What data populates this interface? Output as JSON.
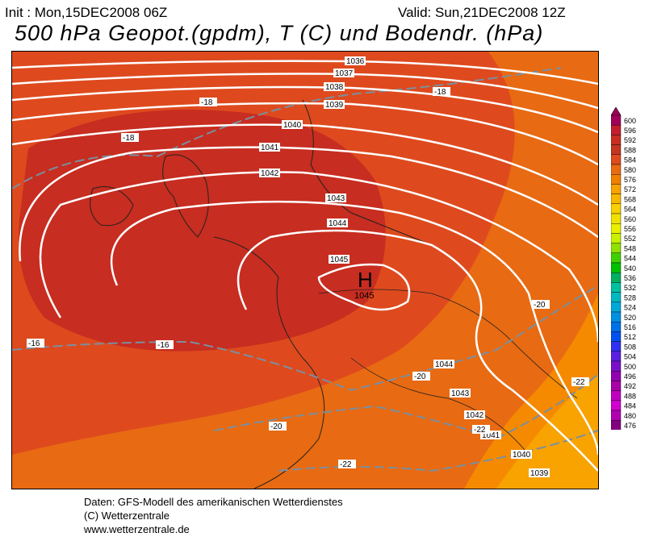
{
  "header": {
    "init": "Init : Mon,15DEC2008 06Z",
    "valid": "Valid: Sun,21DEC2008 12Z",
    "title": "500 hPa Geopot.(gpdm), T (C) und Bodendr. (hPa)"
  },
  "map": {
    "high_letter": "H",
    "high_value": "1045",
    "isobar_labels": [
      "1036",
      "1037",
      "1038",
      "1039",
      "1040",
      "1041",
      "1042",
      "1043",
      "1044",
      "1045",
      "1044",
      "1043",
      "1042",
      "1041",
      "1040",
      "1039"
    ],
    "temp_labels": [
      "-18",
      "-18",
      "-18",
      "-16",
      "-16",
      "-20",
      "-20",
      "-20",
      "-22",
      "-22",
      "-22"
    ],
    "fill_colors": {
      "c588": "#c72d20",
      "c584": "#de4a1e",
      "c580": "#e86a12",
      "c576": "#f58a00",
      "c572": "#f8a300"
    }
  },
  "scale": {
    "values": [
      "600",
      "596",
      "592",
      "588",
      "584",
      "580",
      "576",
      "572",
      "568",
      "564",
      "560",
      "556",
      "552",
      "548",
      "544",
      "540",
      "536",
      "532",
      "528",
      "524",
      "520",
      "516",
      "512",
      "508",
      "504",
      "500",
      "496",
      "492",
      "488",
      "484",
      "480",
      "476"
    ],
    "colors": [
      "#a0005a",
      "#c21e30",
      "#c72d20",
      "#c43522",
      "#de4a1e",
      "#e86a12",
      "#f08000",
      "#f8a300",
      "#f8b800",
      "#f8d000",
      "#f0e000",
      "#e8f000",
      "#c8f000",
      "#90e000",
      "#40d000",
      "#00c000",
      "#00b060",
      "#00c0a0",
      "#00b8c0",
      "#00a8d8",
      "#0090e0",
      "#0070e8",
      "#0050f0",
      "#3030f0",
      "#5a20e0",
      "#7810c8",
      "#9000b0",
      "#a800a8",
      "#c000c0",
      "#d000d0",
      "#b000b0",
      "#800080"
    ]
  },
  "footer": {
    "line1": "Daten: GFS-Modell des amerikanischen Wetterdienstes",
    "line2": "(C) Wetterzentrale",
    "line3": "www.wetterzentrale.de"
  }
}
